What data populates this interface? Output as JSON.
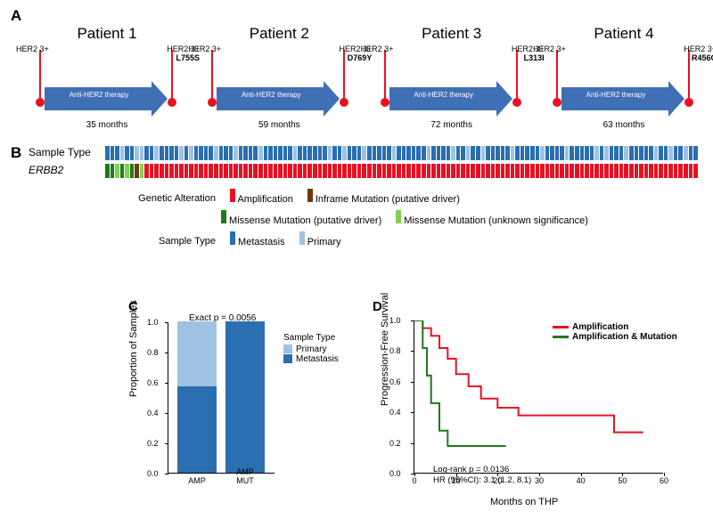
{
  "panelA": {
    "label": "A",
    "patients": [
      {
        "title": "Patient 1",
        "her2_left": "HER2 3+",
        "her2_right": "HER2 3+",
        "mutation": "L755S",
        "arrow_text": "Anti-HER2\ntherapy",
        "months": "35 months"
      },
      {
        "title": "Patient 2",
        "her2_left": "HER2 3+",
        "her2_right": "HER2 3+",
        "mutation": "D769Y",
        "arrow_text": "Anti-HER2\ntherapy",
        "months": "59 months"
      },
      {
        "title": "Patient 3",
        "her2_left": "HER2 3+",
        "her2_right": "HER2 3+",
        "mutation": "L313I",
        "arrow_text": "Anti-HER2\ntherapy",
        "months": "72 months"
      },
      {
        "title": "Patient 4",
        "her2_left": "HER2 3+",
        "her2_right": "HER2 3+",
        "mutation": "R456C",
        "arrow_text": "Anti-HER2\ntherapy",
        "months": "63 months"
      }
    ],
    "colors": {
      "lollipop": "#e81123",
      "arrow": "#3f6fb5",
      "arrow_text_color": "#ffffff"
    }
  },
  "panelB": {
    "label": "B",
    "row_labels": {
      "sample_type": "Sample Type",
      "erbb2": "ERBB2"
    },
    "n_samples": 120,
    "sample_type_pattern": {
      "colors": {
        "met": "#2a6fb0",
        "pri": "#9fc2e3"
      },
      "default": "met",
      "primary_indices": [
        3,
        6,
        10,
        15,
        17,
        22,
        26,
        31,
        38,
        45,
        52,
        58,
        65,
        70,
        76,
        82,
        88,
        93,
        99,
        105,
        111,
        117,
        7,
        48,
        73,
        101,
        114
      ]
    },
    "erbb2_pattern": {
      "colors": {
        "amp": "#e81123",
        "inframe": "#6b3a12",
        "mis_driver": "#1e7a1e",
        "mis_unknown": "#7fd24a"
      },
      "default": "amp",
      "overrides": [
        {
          "i": 0,
          "c": "mis_driver"
        },
        {
          "i": 1,
          "c": "mis_driver"
        },
        {
          "i": 2,
          "c": "mis_unknown"
        },
        {
          "i": 3,
          "c": "mis_driver"
        },
        {
          "i": 4,
          "c": "mis_unknown"
        },
        {
          "i": 5,
          "c": "mis_driver"
        },
        {
          "i": 6,
          "c": "inframe"
        },
        {
          "i": 7,
          "c": "mis_unknown"
        }
      ]
    },
    "legend": {
      "title_ga": "Genetic Alteration",
      "items_ga": [
        {
          "label": "Amplification",
          "color": "#e81123"
        },
        {
          "label": "Inframe Mutation (putative driver)",
          "color": "#6b3a12"
        },
        {
          "label": "Missense Mutation (putative driver)",
          "color": "#1e7a1e"
        },
        {
          "label": "Missense Mutation (unknown significance)",
          "color": "#7fd24a"
        }
      ],
      "title_st": "Sample Type",
      "items_st": [
        {
          "label": "Metastasis",
          "color": "#2a6fb0"
        },
        {
          "label": "Primary",
          "color": "#9fc2e3"
        }
      ]
    }
  },
  "panelC": {
    "label": "C",
    "type": "stacked-bar",
    "exact_p": "Exact p = 0.0056",
    "y_label": "Proportion of Samples",
    "y_ticks": [
      0.0,
      0.2,
      0.4,
      0.6,
      0.8,
      1.0
    ],
    "categories": [
      "AMP",
      "AMP\nMUT"
    ],
    "series": [
      {
        "name": "Primary",
        "color": "#9fc2e3"
      },
      {
        "name": "Metastasis",
        "color": "#2a6fb0"
      }
    ],
    "values": [
      {
        "Primary": 0.43,
        "Metastasis": 0.57
      },
      {
        "Primary": 0.0,
        "Metastasis": 1.0
      }
    ],
    "legend_title": "Sample Type",
    "font_size": 10
  },
  "panelD": {
    "label": "D",
    "type": "km-survival",
    "y_label": "Progression-Free Survival",
    "x_label": "Months on THP",
    "y_ticks": [
      0.0,
      0.2,
      0.4,
      0.6,
      0.8,
      1.0
    ],
    "x_ticks": [
      0,
      10,
      20,
      30,
      40,
      50,
      60
    ],
    "legend": [
      {
        "label": "Amplification",
        "color": "#e81123"
      },
      {
        "label": "Amplification & Mutation",
        "color": "#1e7a1e"
      }
    ],
    "logrank_text": "Log-rank p = 0.0136\nHR (95%CI): 3.1 (1.2, 8.1)",
    "curves": {
      "amp": {
        "color": "#e81123",
        "line_width": 2,
        "points": [
          [
            0,
            1.0
          ],
          [
            2,
            1.0
          ],
          [
            2,
            0.95
          ],
          [
            4,
            0.95
          ],
          [
            4,
            0.9
          ],
          [
            6,
            0.9
          ],
          [
            6,
            0.82
          ],
          [
            8,
            0.82
          ],
          [
            8,
            0.75
          ],
          [
            10,
            0.75
          ],
          [
            10,
            0.65
          ],
          [
            13,
            0.65
          ],
          [
            13,
            0.57
          ],
          [
            16,
            0.57
          ],
          [
            16,
            0.49
          ],
          [
            20,
            0.49
          ],
          [
            20,
            0.43
          ],
          [
            25,
            0.43
          ],
          [
            25,
            0.38
          ],
          [
            38,
            0.38
          ],
          [
            38,
            0.38
          ],
          [
            48,
            0.38
          ],
          [
            48,
            0.27
          ],
          [
            55,
            0.27
          ]
        ]
      },
      "amp_mut": {
        "color": "#1e7a1e",
        "line_width": 2,
        "points": [
          [
            0,
            1.0
          ],
          [
            2,
            1.0
          ],
          [
            2,
            0.82
          ],
          [
            3,
            0.82
          ],
          [
            3,
            0.64
          ],
          [
            4,
            0.64
          ],
          [
            4,
            0.46
          ],
          [
            6,
            0.46
          ],
          [
            6,
            0.28
          ],
          [
            8,
            0.28
          ],
          [
            8,
            0.18
          ],
          [
            22,
            0.18
          ]
        ]
      }
    }
  }
}
